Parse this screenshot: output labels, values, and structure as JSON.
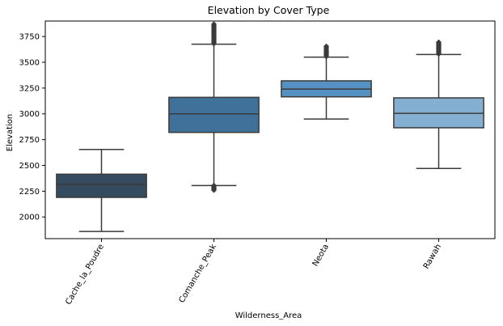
{
  "chart_data": {
    "type": "box",
    "title": "Elevation by Cover Type",
    "xlabel": "Wilderness_Area",
    "ylabel": "Elevation",
    "ylim": [
      1790,
      3900
    ],
    "yticks": [
      2000,
      2250,
      2500,
      2750,
      3000,
      3250,
      3500,
      3750
    ],
    "grid": false,
    "categories": [
      "Cache_la_Poudre",
      "Comanche_Peak",
      "Neota",
      "Rawah"
    ],
    "boxes": [
      {
        "category": "Cache_la_Poudre",
        "whisker_low": 1860,
        "q1": 2190,
        "median": 2315,
        "q3": 2415,
        "whisker_high": 2655,
        "outliers": [],
        "color": "#354b5e"
      },
      {
        "category": "Comanche_Peak",
        "whisker_low": 2305,
        "q1": 2820,
        "median": 3000,
        "q3": 3160,
        "whisker_high": 3675,
        "outliers_low_range": [
          2260,
          2305
        ],
        "outliers_high_range": [
          3680,
          3870
        ],
        "color": "#3f719a"
      },
      {
        "category": "Neota",
        "whisker_low": 2950,
        "q1": 3165,
        "median": 3240,
        "q3": 3320,
        "whisker_high": 3550,
        "outliers_high_range": [
          3555,
          3655
        ],
        "color": "#5591c1"
      },
      {
        "category": "Rawah",
        "whisker_low": 2470,
        "q1": 2865,
        "median": 3005,
        "q3": 3155,
        "whisker_high": 3575,
        "outliers_high_range": [
          3580,
          3695
        ],
        "color": "#84afd1"
      }
    ]
  }
}
